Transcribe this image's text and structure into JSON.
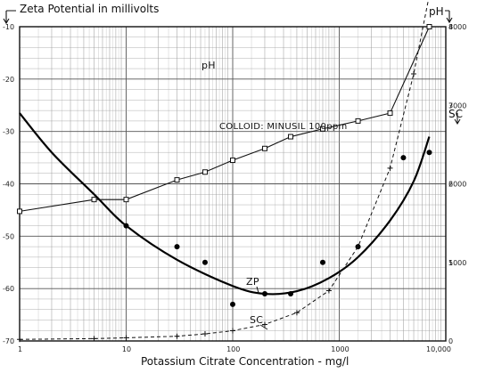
{
  "chart_data": {
    "type": "scatter",
    "x_scale": "log",
    "xlim": [
      1,
      10000
    ],
    "xlabel": "Potassium Citrate Concentration - mg/l",
    "x_tick_labels": [
      "1",
      "10",
      "100",
      "1000",
      "10,000"
    ],
    "left_axis": {
      "label": "Zeta Potential in millivolts",
      "ylim": [
        -70,
        -10
      ],
      "tick_labels": [
        "-10",
        "-20",
        "-30",
        "-40",
        "-50",
        "-60",
        "-70"
      ]
    },
    "right_axis_ph": {
      "label": "pH",
      "ylim": [
        4,
        8
      ],
      "tick_labels": [
        "8",
        "7",
        "6",
        "5"
      ]
    },
    "right_axis_sc": {
      "label": "SC",
      "ylim": [
        0,
        4000
      ],
      "tick_labels": [
        "4000",
        "3000",
        "2000",
        "1000",
        "0"
      ]
    },
    "annotation": "COLLOID: MINUSIL 100ppm",
    "grid": true,
    "series": [
      {
        "name": "ZP",
        "axis": "left",
        "marker": "dot",
        "points": [
          [
            5,
            -43
          ],
          [
            10,
            -48
          ],
          [
            30,
            -52
          ],
          [
            55,
            -55
          ],
          [
            100,
            -63
          ],
          [
            200,
            -61
          ],
          [
            350,
            -61
          ],
          [
            700,
            -55
          ],
          [
            1500,
            -52
          ],
          [
            4000,
            -35
          ],
          [
            7000,
            -34
          ]
        ],
        "curve": [
          [
            1,
            -26.5
          ],
          [
            2,
            -34
          ],
          [
            5,
            -42
          ],
          [
            10,
            -48
          ],
          [
            30,
            -54.5
          ],
          [
            100,
            -59.5
          ],
          [
            200,
            -61
          ],
          [
            400,
            -60.5
          ],
          [
            800,
            -58
          ],
          [
            1500,
            -54
          ],
          [
            3000,
            -47
          ],
          [
            5000,
            -39.5
          ],
          [
            7000,
            -31
          ]
        ]
      },
      {
        "name": "pH",
        "axis": "right_ph",
        "marker": "square",
        "points": [
          [
            1,
            5.65
          ],
          [
            5,
            5.8
          ],
          [
            10,
            5.8
          ],
          [
            30,
            6.05
          ],
          [
            55,
            6.15
          ],
          [
            100,
            6.3
          ],
          [
            200,
            6.45
          ],
          [
            350,
            6.6
          ],
          [
            700,
            6.7
          ],
          [
            1500,
            6.8
          ],
          [
            3000,
            6.9
          ],
          [
            7000,
            8.0
          ]
        ]
      },
      {
        "name": "SC",
        "axis": "right_sc",
        "marker": "plus",
        "points": [
          [
            1,
            20
          ],
          [
            5,
            30
          ],
          [
            10,
            40
          ],
          [
            30,
            60
          ],
          [
            55,
            90
          ],
          [
            100,
            130
          ],
          [
            200,
            210
          ],
          [
            400,
            360
          ],
          [
            800,
            640
          ],
          [
            1500,
            1200
          ],
          [
            3000,
            2200
          ],
          [
            5000,
            3400
          ],
          [
            7000,
            4400
          ]
        ]
      }
    ]
  }
}
